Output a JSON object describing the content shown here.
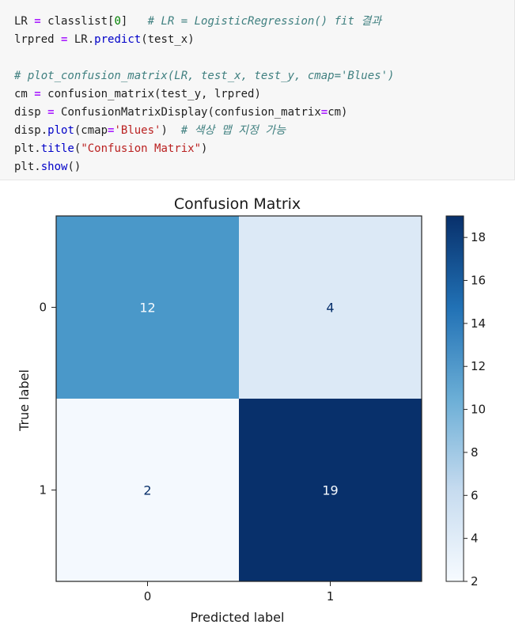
{
  "code_cell": {
    "lines": [
      [
        {
          "t": "LR ",
          "c": "t-default"
        },
        {
          "t": "=",
          "c": "t-op"
        },
        {
          "t": " classlist[",
          "c": "t-default"
        },
        {
          "t": "0",
          "c": "t-num"
        },
        {
          "t": "]   ",
          "c": "t-default"
        },
        {
          "t": "# LR = LogisticRegression() fit 결과",
          "c": "t-cm"
        }
      ],
      [
        {
          "t": "lrpred ",
          "c": "t-default"
        },
        {
          "t": "=",
          "c": "t-op"
        },
        {
          "t": " LR.",
          "c": "t-default"
        },
        {
          "t": "predict",
          "c": "t-fn"
        },
        {
          "t": "(test_x)",
          "c": "t-default"
        }
      ],
      [
        {
          "t": "",
          "c": "t-default"
        }
      ],
      [
        {
          "t": "# plot_confusion_matrix(LR, test_x, test_y, cmap='Blues')",
          "c": "t-cm"
        }
      ],
      [
        {
          "t": "cm ",
          "c": "t-default"
        },
        {
          "t": "=",
          "c": "t-op"
        },
        {
          "t": " confusion_matrix(test_y, lrpred)",
          "c": "t-default"
        }
      ],
      [
        {
          "t": "disp ",
          "c": "t-default"
        },
        {
          "t": "=",
          "c": "t-op"
        },
        {
          "t": " ConfusionMatrixDisplay(confusion_matrix",
          "c": "t-default"
        },
        {
          "t": "=",
          "c": "t-op"
        },
        {
          "t": "cm)",
          "c": "t-default"
        }
      ],
      [
        {
          "t": "disp.",
          "c": "t-default"
        },
        {
          "t": "plot",
          "c": "t-fn"
        },
        {
          "t": "(cmap",
          "c": "t-default"
        },
        {
          "t": "=",
          "c": "t-op"
        },
        {
          "t": "'Blues'",
          "c": "t-str"
        },
        {
          "t": ")  ",
          "c": "t-default"
        },
        {
          "t": "# 색상 맵 지정 가능",
          "c": "t-cm"
        }
      ],
      [
        {
          "t": "plt.",
          "c": "t-default"
        },
        {
          "t": "title",
          "c": "t-fn"
        },
        {
          "t": "(",
          "c": "t-default"
        },
        {
          "t": "\"Confusion Matrix\"",
          "c": "t-str"
        },
        {
          "t": ")",
          "c": "t-default"
        }
      ],
      [
        {
          "t": "plt.",
          "c": "t-default"
        },
        {
          "t": "show",
          "c": "t-fn"
        },
        {
          "t": "()",
          "c": "t-default"
        }
      ]
    ]
  },
  "chart_data": {
    "type": "heatmap",
    "title": "Confusion Matrix",
    "xlabel": "Predicted label",
    "ylabel": "True label",
    "x_ticks": [
      "0",
      "1"
    ],
    "y_ticks": [
      "0",
      "1"
    ],
    "matrix": [
      [
        12,
        4
      ],
      [
        2,
        19
      ]
    ],
    "colormap": "Blues",
    "colorbar": {
      "range": [
        2,
        19
      ],
      "ticks": [
        2,
        4,
        6,
        8,
        10,
        12,
        14,
        16,
        18
      ]
    },
    "colors": {
      "cell_0_0": "#4a98c9",
      "cell_0_1": "#dce9f6",
      "cell_1_0": "#f4f9fe",
      "cell_1_1": "#08306b",
      "text_on_dark": "#f7fbff",
      "text_on_light": "#08306b",
      "colorbar_top": "#08306b",
      "colorbar_mid": "#4a98c9",
      "colorbar_bottom": "#f7fbff"
    }
  }
}
